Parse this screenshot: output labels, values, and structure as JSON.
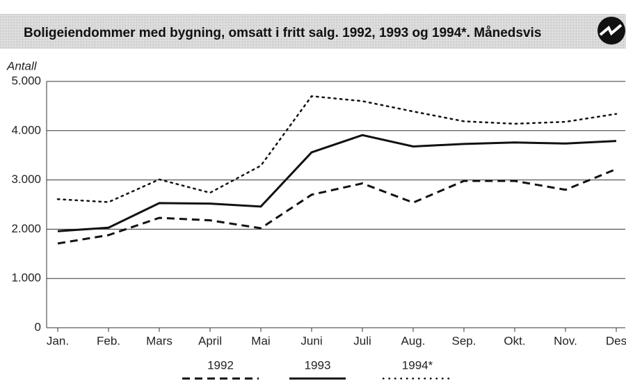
{
  "chart_data": {
    "type": "line",
    "title": "Boligeiendommer med bygning, omsatt i fritt salg. 1992, 1993 og 1994*. Månedsvis",
    "y_label": "Antall",
    "categories": [
      "Jan.",
      "Feb.",
      "Mars",
      "April",
      "Mai",
      "Juni",
      "Juli",
      "Aug.",
      "Sep.",
      "Okt.",
      "Nov.",
      "Des"
    ],
    "series": [
      {
        "name": "1992",
        "color": "#111111",
        "dash": "dashed",
        "values": [
          1710,
          1880,
          2230,
          2180,
          2020,
          2700,
          2930,
          2540,
          2980,
          2980,
          2800,
          3220
        ]
      },
      {
        "name": "1993",
        "color": "#111111",
        "dash": "solid",
        "values": [
          1960,
          2030,
          2530,
          2520,
          2460,
          3560,
          3910,
          3680,
          3730,
          3760,
          3740,
          3790
        ]
      },
      {
        "name": "1994*",
        "color": "#111111",
        "dash": "dotted",
        "values": [
          2610,
          2550,
          3010,
          2740,
          3290,
          4700,
          4600,
          4390,
          4190,
          4140,
          4180,
          4340
        ]
      }
    ],
    "ylim": [
      0,
      5000
    ],
    "yticks": [
      0,
      {
        "value": 1000,
        "label": "1.000"
      },
      {
        "value": 2000,
        "label": "2.000"
      },
      {
        "value": 3000,
        "label": "3.000"
      },
      {
        "value": 4000,
        "label": "4.000"
      },
      {
        "value": 5000,
        "label": "5.000"
      }
    ],
    "grid": true,
    "legend": "bottom"
  }
}
